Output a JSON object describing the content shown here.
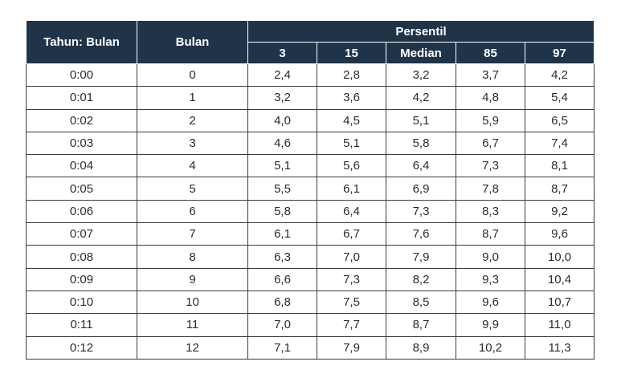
{
  "table": {
    "headers": {
      "tahun_bulan": "Tahun: Bulan",
      "bulan": "Bulan",
      "persentil": "Persentil",
      "percentiles": [
        "3",
        "15",
        "Median",
        "85",
        "97"
      ]
    },
    "rows": [
      [
        "0:00",
        "0",
        "2,4",
        "2,8",
        "3,2",
        "3,7",
        "4,2"
      ],
      [
        "0:01",
        "1",
        "3,2",
        "3,6",
        "4,2",
        "4,8",
        "5,4"
      ],
      [
        "0:02",
        "2",
        "4,0",
        "4,5",
        "5,1",
        "5,9",
        "6,5"
      ],
      [
        "0:03",
        "3",
        "4,6",
        "5,1",
        "5,8",
        "6,7",
        "7,4"
      ],
      [
        "0:04",
        "4",
        "5,1",
        "5,6",
        "6,4",
        "7,3",
        "8,1"
      ],
      [
        "0:05",
        "5",
        "5,5",
        "6,1",
        "6,9",
        "7,8",
        "8,7"
      ],
      [
        "0:06",
        "6",
        "5,8",
        "6,4",
        "7,3",
        "8,3",
        "9,2"
      ],
      [
        "0:07",
        "7",
        "6,1",
        "6,7",
        "7,6",
        "8,7",
        "9,6"
      ],
      [
        "0:08",
        "8",
        "6,3",
        "7,0",
        "7,9",
        "9,0",
        "10,0"
      ],
      [
        "0:09",
        "9",
        "6,6",
        "7,3",
        "8,2",
        "9,3",
        "10,4"
      ],
      [
        "0:10",
        "10",
        "6,8",
        "7,5",
        "8,5",
        "9,6",
        "10,7"
      ],
      [
        "0:11",
        "11",
        "7,0",
        "7,7",
        "8,7",
        "9,9",
        "11,0"
      ],
      [
        "0:12",
        "12",
        "7,1",
        "7,9",
        "8,9",
        "10,2",
        "11,3"
      ]
    ]
  }
}
